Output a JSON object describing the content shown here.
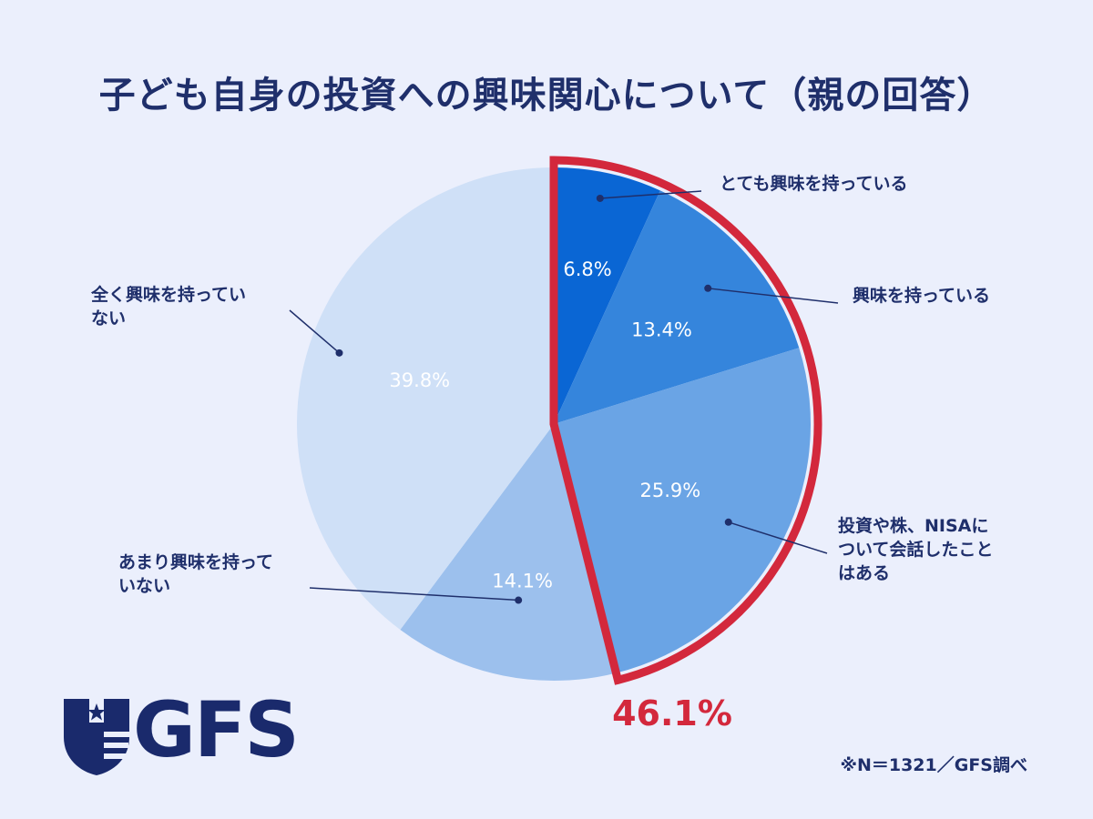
{
  "chart_data": {
    "type": "pie",
    "title": "子ども自身の投資への興味関心について（親の回答）",
    "start_angle_deg": 0,
    "direction": "clockwise",
    "slices": [
      {
        "label_lines": [
          "とても興味を持っている"
        ],
        "value": 6.8,
        "display": "6.8%",
        "color": "#0a66d4"
      },
      {
        "label_lines": [
          "興味を持っている"
        ],
        "value": 13.4,
        "display": "13.4%",
        "color": "#3585dc"
      },
      {
        "label_lines": [
          "投資や株、NISAに",
          "ついて会話したこと",
          "はある"
        ],
        "value": 25.9,
        "display": "25.9%",
        "color": "#6aa4e5"
      },
      {
        "label_lines": [
          "あまり興味を持って",
          "いない"
        ],
        "value": 14.1,
        "display": "14.1%",
        "color": "#9cc0ed"
      },
      {
        "label_lines": [
          "全く興味を持ってい",
          "ない"
        ],
        "value": 39.8,
        "display": "39.8%",
        "color": "#cfe0f7"
      }
    ],
    "highlight": {
      "slice_indices": [
        0,
        1,
        2
      ],
      "value_text": "46.1%",
      "color": "#d3283c"
    }
  },
  "logo": {
    "text": "GFS"
  },
  "source_note": "※N＝1321／GFS調べ"
}
